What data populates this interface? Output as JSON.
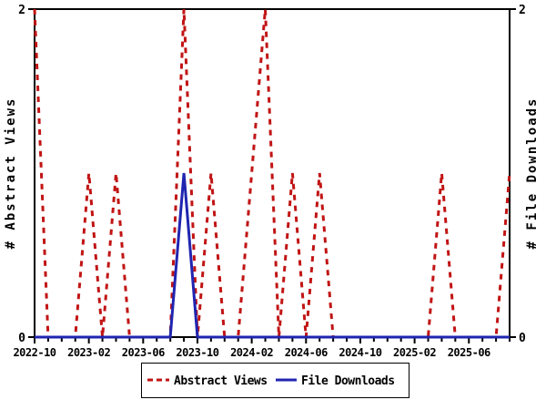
{
  "colors": {
    "abstract_views": "#c11414",
    "file_downloads": "#2025b0",
    "axis": "#000000",
    "background": "#ffffff"
  },
  "chart_data": {
    "type": "line",
    "x": [
      "2022-10",
      "2022-11",
      "2022-12",
      "2023-01",
      "2023-02",
      "2023-03",
      "2023-04",
      "2023-05",
      "2023-06",
      "2023-07",
      "2023-08",
      "2023-09",
      "2023-10",
      "2023-11",
      "2023-12",
      "2024-01",
      "2024-02",
      "2024-03",
      "2024-04",
      "2024-05",
      "2024-06",
      "2024-07",
      "2024-08",
      "2024-09",
      "2024-10",
      "2024-11",
      "2024-12",
      "2025-01",
      "2025-02",
      "2025-03",
      "2025-04",
      "2025-05",
      "2025-06",
      "2025-07",
      "2025-08",
      "2025-09"
    ],
    "series": [
      {
        "name": "Abstract Views",
        "axis": "left",
        "style": "dashed",
        "color": "#c11414",
        "values": [
          2,
          0,
          0,
          0,
          1,
          0,
          1,
          0,
          0,
          0,
          0,
          2,
          0,
          1,
          0,
          0,
          1,
          2,
          0,
          1,
          0,
          1,
          0,
          0,
          0,
          0,
          0,
          0,
          0,
          0,
          1,
          0,
          0,
          0,
          0,
          1
        ]
      },
      {
        "name": "File Downloads",
        "axis": "right",
        "style": "solid",
        "color": "#2025b0",
        "values": [
          0,
          0,
          0,
          0,
          0,
          0,
          0,
          0,
          0,
          0,
          0,
          1,
          0,
          0,
          0,
          0,
          0,
          0,
          0,
          0,
          0,
          0,
          0,
          0,
          0,
          0,
          0,
          0,
          0,
          0,
          0,
          0,
          0,
          0,
          0,
          0
        ]
      }
    ],
    "ylabel_left": "# Abstract Views",
    "ylabel_right": "# File Downloads",
    "ylim": [
      0,
      2
    ],
    "ytick_values": [
      0,
      2
    ],
    "ytick_labels": [
      "0",
      "2"
    ],
    "xtick_labeled": [
      "2022-10",
      "2023-02",
      "2023-06",
      "2023-10",
      "2024-02",
      "2024-06",
      "2024-10",
      "2025-02",
      "2025-06"
    ],
    "xtick_label_every": 4,
    "grid": false,
    "legend_position": "bottom-center",
    "legend": [
      {
        "label": "Abstract Views",
        "style": "dashed",
        "color": "#c11414"
      },
      {
        "label": "File Downloads",
        "style": "solid",
        "color": "#2025b0"
      }
    ]
  }
}
